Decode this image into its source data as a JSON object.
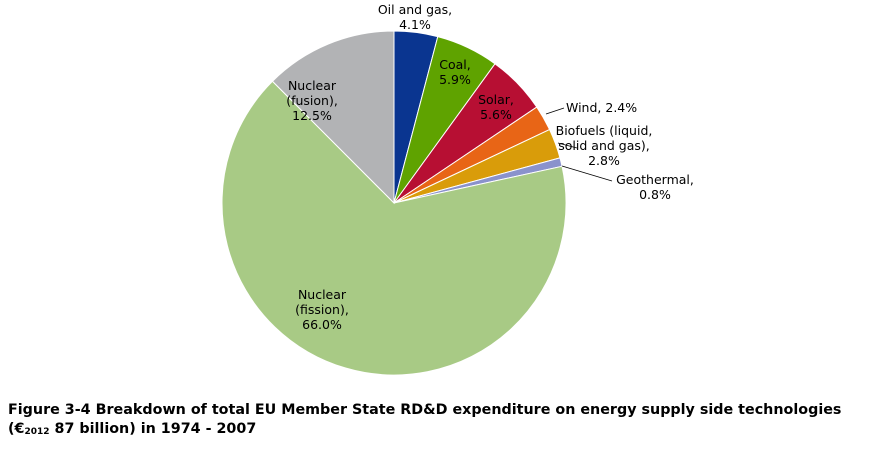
{
  "chart_data": {
    "type": "pie",
    "slices": [
      {
        "label": [
          "Oil and gas,",
          "4.1%"
        ],
        "name": "Oil and gas",
        "value": 4.1,
        "color": "#0a3590"
      },
      {
        "label": [
          "Coal,",
          "5.9%"
        ],
        "name": "Coal",
        "value": 5.9,
        "color": "#5fa300"
      },
      {
        "label": [
          "Solar,",
          "5.6%"
        ],
        "name": "Solar",
        "value": 5.6,
        "color": "#b70f33"
      },
      {
        "label": [
          "Wind, 2.4%"
        ],
        "name": "Wind",
        "value": 2.4,
        "color": "#e86516"
      },
      {
        "label": [
          "Biofuels (liquid,",
          "solid and gas),",
          "2.8%"
        ],
        "name": "Biofuels (liquid, solid and gas)",
        "value": 2.8,
        "color": "#d99c0a"
      },
      {
        "label": [
          "Geothermal,",
          "0.8%"
        ],
        "name": "Geothermal",
        "value": 0.8,
        "color": "#8a92cc"
      },
      {
        "label": [
          "Nuclear",
          "(fission),",
          "66.0%"
        ],
        "name": "Nuclear (fission)",
        "value": 66.0,
        "color": "#a8ca85"
      },
      {
        "label": [
          "Nuclear",
          "(fusion),",
          "12.5%"
        ],
        "name": "Nuclear (fusion)",
        "value": 12.5,
        "color": "#b2b3b5"
      }
    ]
  },
  "caption": {
    "prefix": "Figure 3-4 Breakdown of total EU Member State RD&D expenditure on energy supply side technologies (€",
    "sub": "2012",
    "suffix": " 87 billion) in 1974 - 2007"
  }
}
